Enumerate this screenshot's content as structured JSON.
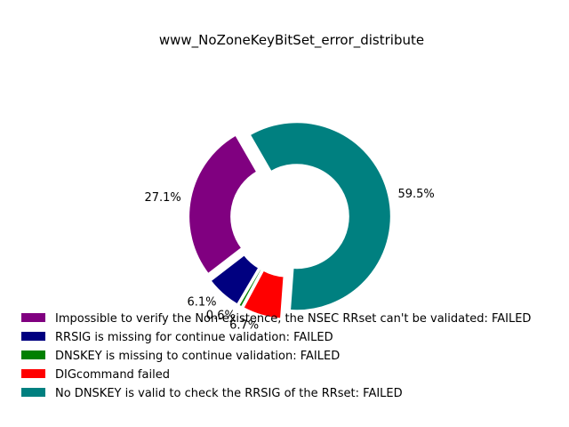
{
  "chart_data": {
    "type": "pie",
    "variant": "donut",
    "title": "www_NoZoneKeyBitSet_error_distribute",
    "slices": [
      {
        "label": "Impossible to verify the Non-existence, the NSEC RRset can't be validated: FAILED",
        "value": 27.1,
        "pct_label": "27.1%",
        "color": "#800080"
      },
      {
        "label": "RRSIG is missing for continue validation: FAILED",
        "value": 6.1,
        "pct_label": "6.1%",
        "color": "#000080"
      },
      {
        "label": "DNSKEY is missing to continue validation: FAILED",
        "value": 0.6,
        "pct_label": "0.6%",
        "color": "#008000"
      },
      {
        "label": "DIGcommand failed",
        "value": 6.7,
        "pct_label": "6.7%",
        "color": "#ff0000"
      },
      {
        "label": "No DNSKEY is valid to check the RRSIG of the RRset: FAILED",
        "value": 59.5,
        "pct_label": "59.5%",
        "color": "#008080"
      }
    ],
    "legend_position": "bottom"
  }
}
